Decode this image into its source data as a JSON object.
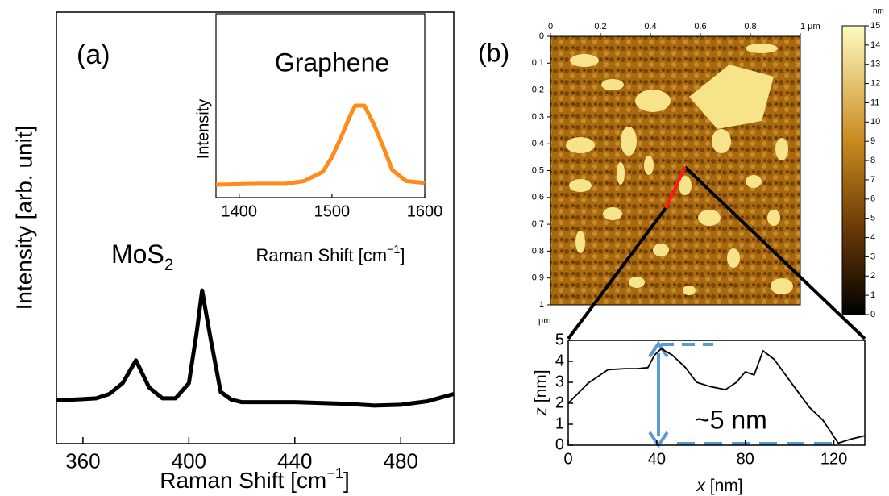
{
  "chart_data": [
    {
      "type": "line",
      "panel_label": "(a)",
      "annotation": [
        "MoS",
        "2"
      ],
      "x_label": [
        "Raman Shift [cm",
        "−1",
        "]"
      ],
      "y_label": "Intensity [arb. unit]",
      "x": [
        350,
        360,
        365,
        370,
        375,
        380,
        385,
        390,
        395,
        400,
        403,
        405,
        408,
        412,
        416,
        420,
        440,
        460,
        470,
        480,
        490,
        500
      ],
      "series": [
        {
          "color": "#000000",
          "values": [
            10,
            10.3,
            10.5,
            11.5,
            14,
            19.3,
            13,
            10.5,
            10.5,
            14,
            26,
            35.5,
            25,
            12,
            10.2,
            9.6,
            9.6,
            9.2,
            8.8,
            9,
            9.8,
            11.5
          ]
        }
      ],
      "xlim": [
        350,
        500
      ],
      "ylim": [
        0,
        100
      ],
      "xticks": [
        360,
        400,
        440,
        480
      ]
    },
    {
      "type": "line",
      "title": "Graphene",
      "x_label": [
        "Raman Shift [cm",
        "−1",
        "]"
      ],
      "y_label": "Intensity",
      "x": [
        1375,
        1420,
        1450,
        1470,
        1490,
        1500,
        1510,
        1520,
        1525,
        1535,
        1545,
        1555,
        1565,
        1580,
        1600
      ],
      "series": [
        {
          "color": "#ff8c1a",
          "values": [
            7,
            7.5,
            7.5,
            9,
            14,
            22,
            33,
            45,
            50,
            50,
            40,
            28,
            15,
            9,
            8
          ]
        }
      ],
      "xlim": [
        1375,
        1600
      ],
      "ylim": [
        0,
        100
      ],
      "xticks": [
        1400,
        1500,
        1600
      ]
    },
    {
      "type": "image",
      "panel_label": "(b)",
      "y_unit": "µm",
      "xlim": [
        0,
        1
      ],
      "xticks": [
        0,
        0.2,
        0.4,
        0.6,
        0.8,
        {
          "value": 1,
          "label": "1 µm"
        }
      ],
      "ylim": [
        0,
        1
      ],
      "yticks": [
        0,
        0.1,
        0.2,
        0.3,
        0.4,
        0.5,
        0.6,
        0.7,
        0.8,
        0.9,
        1
      ],
      "colorbar": {
        "label": "nm",
        "lim": [
          0,
          15
        ],
        "ticks": [
          0,
          1,
          2,
          3,
          4,
          5,
          6,
          7,
          8,
          9,
          10,
          11,
          12,
          13,
          14,
          15
        ]
      }
    },
    {
      "type": "line",
      "annotation": "~5 nm",
      "x_label": [
        "x",
        " [nm]"
      ],
      "y_label": [
        "z",
        " [nm]"
      ],
      "x": [
        0,
        9,
        18,
        25.5,
        31,
        36,
        39,
        42,
        47,
        53,
        58,
        64,
        71,
        76,
        80,
        84,
        88,
        93,
        102,
        109,
        115,
        122,
        128,
        134
      ],
      "series": [
        {
          "color": "#000000",
          "values": [
            2,
            2.96,
            3.6,
            3.65,
            3.65,
            3.7,
            4.3,
            4.6,
            4.3,
            3.7,
            3,
            2.8,
            2.65,
            3,
            3.5,
            3.35,
            4.5,
            4.1,
            2.8,
            1.8,
            1.2,
            0.1,
            0.3,
            0.45
          ]
        }
      ],
      "xlim": [
        0,
        134
      ],
      "ylim": [
        0,
        5
      ],
      "xticks": [
        0,
        40,
        80,
        120
      ],
      "yticks": [
        0,
        1,
        2,
        3,
        4,
        5
      ]
    }
  ]
}
